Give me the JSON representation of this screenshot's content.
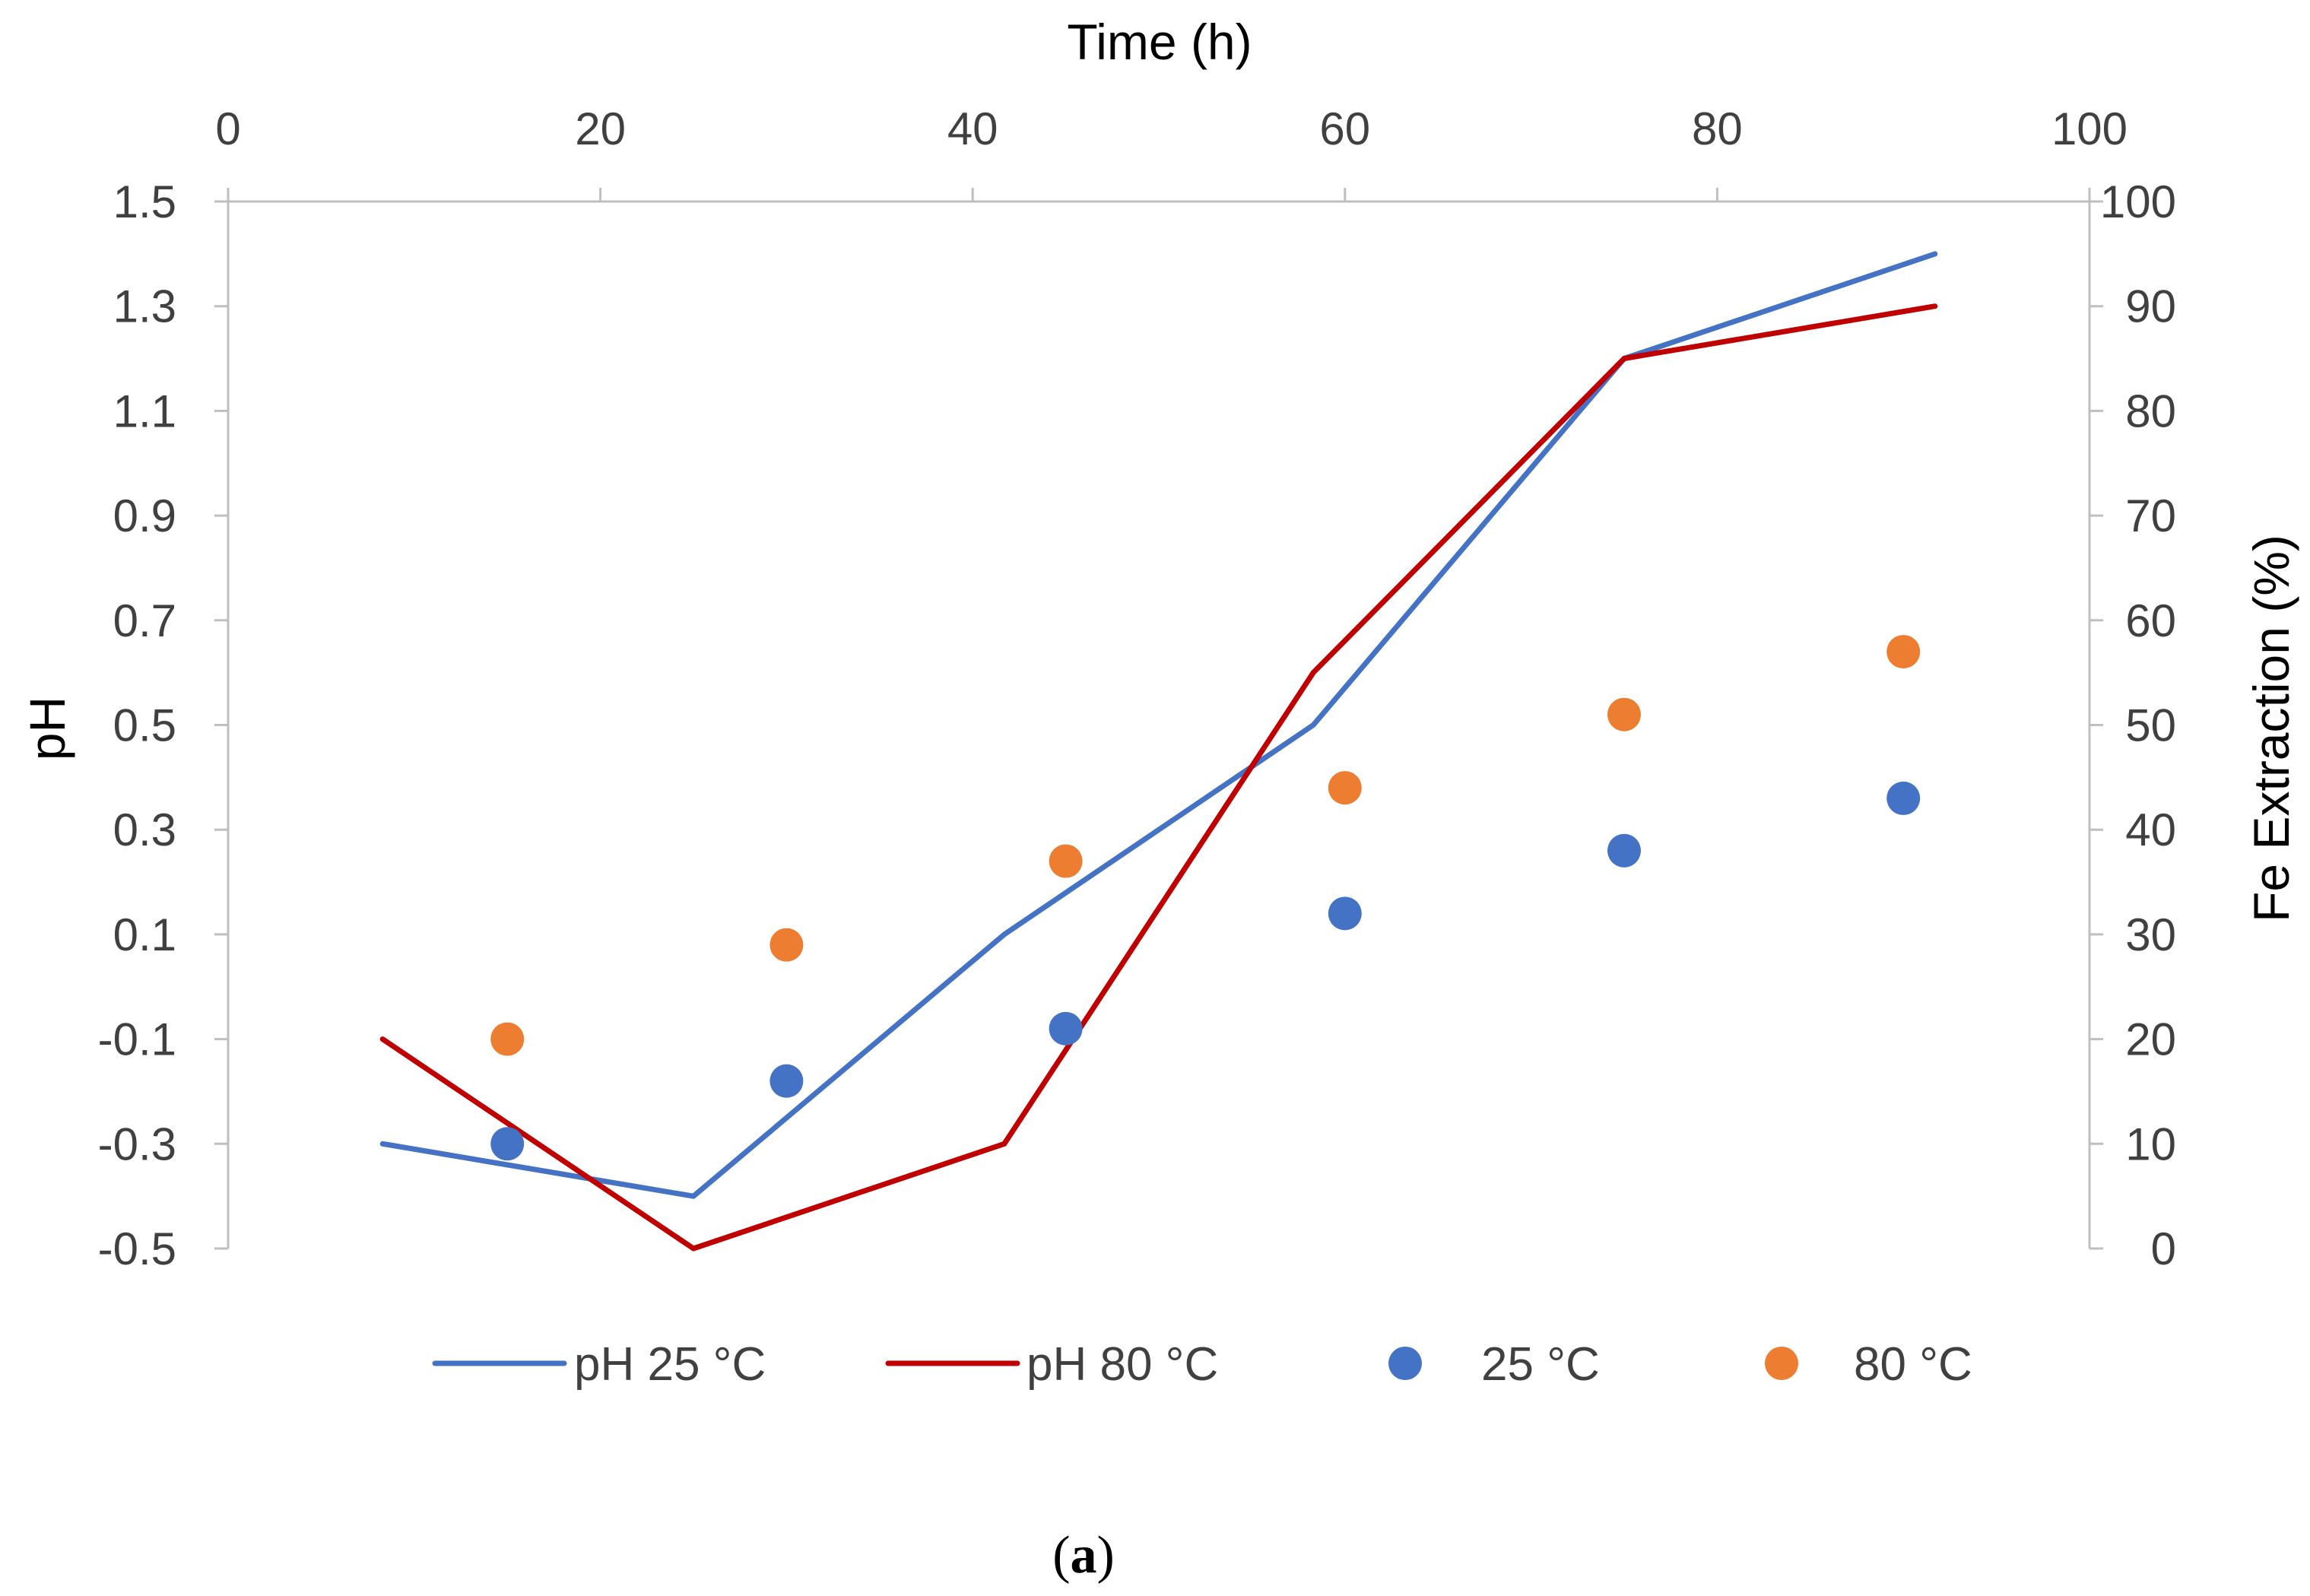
{
  "chart_data": {
    "type": "line+scatter",
    "x_axis": {
      "label": "Time (h)",
      "position": "top",
      "range": [
        0,
        100
      ],
      "ticks": [
        0,
        20,
        40,
        60,
        80,
        100
      ]
    },
    "y_left": {
      "label": "pH",
      "range": [
        -0.5,
        1.5
      ],
      "ticks": [
        -0.5,
        -0.3,
        -0.1,
        0.1,
        0.3,
        0.5,
        0.7,
        0.9,
        1.1,
        1.3,
        1.5
      ],
      "tick_labels": [
        "-0.5",
        "-0.3",
        "-0.1",
        "0.1",
        "0.3",
        "0.5",
        "0.7",
        "0.9",
        "1.1",
        "1.3",
        "1.5"
      ]
    },
    "y_right": {
      "label": "Fe Extraction (%)",
      "range": [
        0,
        100
      ],
      "ticks": [
        0,
        10,
        20,
        30,
        40,
        50,
        60,
        70,
        80,
        90,
        100
      ]
    },
    "series": [
      {
        "name": "pH 25 °C",
        "kind": "line",
        "axis": "left",
        "color": "#4472C4",
        "x": [
          8.3,
          25,
          41.7,
          58.3,
          75,
          91.7
        ],
        "y": [
          -0.3,
          -0.4,
          0.1,
          0.5,
          1.2,
          1.4
        ]
      },
      {
        "name": "pH 80 °C",
        "kind": "line",
        "axis": "left",
        "color": "#C00000",
        "x": [
          8.3,
          25,
          41.7,
          58.3,
          75,
          91.7
        ],
        "y": [
          -0.1,
          -0.5,
          -0.3,
          0.6,
          1.2,
          1.3
        ]
      },
      {
        "name": "25 °C",
        "kind": "scatter",
        "axis": "right",
        "color": "#4472C4",
        "x": [
          15,
          30,
          45,
          60,
          75,
          90
        ],
        "y": [
          10,
          16,
          21,
          32,
          38,
          43
        ]
      },
      {
        "name": "80 °C",
        "kind": "scatter",
        "axis": "right",
        "color": "#ED7D31",
        "x": [
          15,
          30,
          45,
          60,
          75,
          90
        ],
        "y": [
          20,
          29,
          37,
          44,
          51,
          57
        ]
      }
    ],
    "legend_position": "bottom"
  },
  "caption": {
    "open": "(",
    "letter": "a",
    "close": ")"
  }
}
